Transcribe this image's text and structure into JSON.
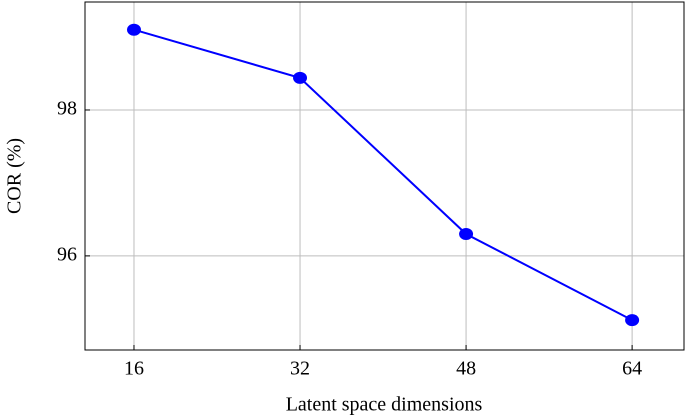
{
  "chart_data": {
    "type": "line",
    "x_label": "Latent space dimensions",
    "y_label": "COR (%)",
    "x": [
      16,
      32,
      48,
      64
    ],
    "series": [
      {
        "name": "COR",
        "color": "#0000ff",
        "values": [
          99.1,
          98.44,
          96.3,
          95.12
        ]
      }
    ],
    "xlim": [
      11.28,
      69.0
    ],
    "xticks": [
      16,
      32,
      48,
      64
    ],
    "ylim": [
      94.71,
      99.48
    ],
    "yticks": [
      96,
      98
    ],
    "grid": true
  }
}
